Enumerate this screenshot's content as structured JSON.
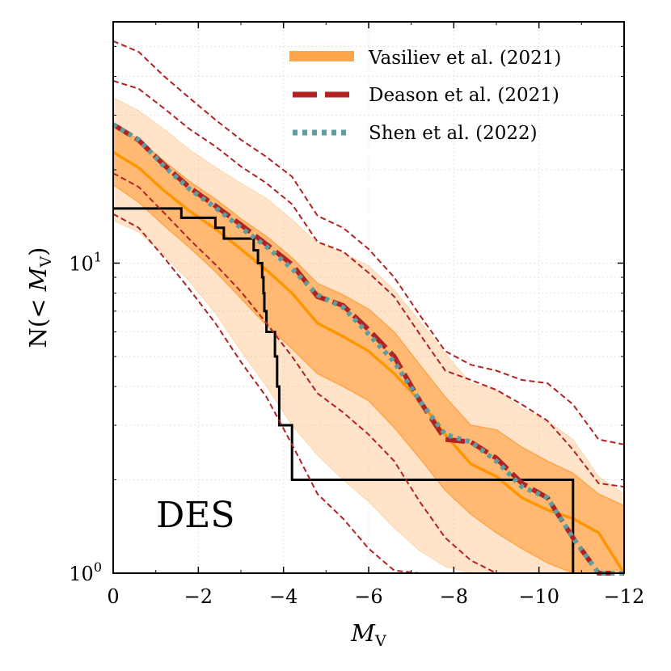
{
  "chart_data": {
    "type": "line",
    "panel_label": "DES",
    "xlabel": {
      "main": "M",
      "sub": "V"
    },
    "ylabel": {
      "prefix": "N(< ",
      "main": "M",
      "sub": "V",
      "suffix": ")"
    },
    "xlim": [
      0,
      -12
    ],
    "ylim": [
      1,
      60
    ],
    "y_scale": "log",
    "grid": true,
    "legend_position": "top-right",
    "x_ticks": [
      {
        "value": 0,
        "label": "0"
      },
      {
        "value": -2,
        "label": "−2"
      },
      {
        "value": -4,
        "label": "−4"
      },
      {
        "value": -6,
        "label": "−6"
      },
      {
        "value": -8,
        "label": "−8"
      },
      {
        "value": -10,
        "label": "−10"
      },
      {
        "value": -12,
        "label": "−12"
      }
    ],
    "y_ticks": [
      {
        "value": 1,
        "base": "10",
        "exp": "0"
      },
      {
        "value": 10,
        "base": "10",
        "exp": "1"
      }
    ],
    "x": [
      0,
      -0.6,
      -1.2,
      -1.8,
      -2.4,
      -3.0,
      -3.6,
      -4.2,
      -4.8,
      -5.4,
      -6.0,
      -6.6,
      -7.2,
      -7.8,
      -8.4,
      -9.0,
      -9.6,
      -10.2,
      -10.8,
      -11.4,
      -12.0
    ],
    "vasiliev": {
      "name": "Vasiliev et al. (2021)",
      "color": "#ffa64d",
      "line_color": "#ff9500",
      "median": [
        22.8,
        20.3,
        17.1,
        14.7,
        12.9,
        11.1,
        9.5,
        8.0,
        6.4,
        5.8,
        5.2,
        4.4,
        3.6,
        2.8,
        2.25,
        2.05,
        1.75,
        1.6,
        1.5,
        1.35,
        1.0
      ],
      "inner_lo": [
        17.9,
        15.7,
        13.2,
        11.2,
        9.4,
        7.7,
        6.3,
        5.3,
        4.4,
        4.0,
        3.6,
        2.95,
        2.35,
        1.85,
        1.55,
        1.35,
        1.2,
        1.08,
        1.0,
        1.0,
        1.0
      ],
      "inner_hi": [
        28.0,
        25.0,
        21.3,
        18.3,
        16.1,
        13.9,
        12.2,
        10.4,
        8.6,
        7.9,
        7.1,
        6.0,
        4.7,
        3.7,
        3.0,
        2.9,
        2.55,
        2.3,
        2.1,
        1.8,
        1.65
      ],
      "outer_lo": [
        13.7,
        12.6,
        10.6,
        8.7,
        6.9,
        5.2,
        4.0,
        3.0,
        2.4,
        2.0,
        1.7,
        1.4,
        1.18,
        1.05,
        1.0,
        1.0,
        1.0,
        1.0,
        1.0,
        1.0,
        1.0
      ],
      "outer_hi": [
        34.2,
        31.0,
        27.0,
        23.2,
        20.4,
        18.1,
        16.2,
        13.8,
        11.6,
        10.8,
        9.8,
        8.2,
        6.5,
        5.1,
        4.1,
        3.9,
        3.4,
        3.1,
        2.7,
        2.05,
        1.8
      ]
    },
    "deason": {
      "name": "Deason et al. (2021)",
      "color": "#b22222",
      "median": [
        28.0,
        24.9,
        20.7,
        17.5,
        15.3,
        13.3,
        11.5,
        9.9,
        7.8,
        7.3,
        6.1,
        5.0,
        3.6,
        2.7,
        2.65,
        2.35,
        1.95,
        1.75,
        1.3,
        1.0,
        1.0
      ],
      "inner_lo": [
        19.5,
        17.6,
        14.5,
        11.9,
        9.9,
        8.1,
        6.4,
        5.0,
        3.8,
        3.3,
        2.8,
        2.3,
        1.7,
        1.3,
        1.1,
        1.0,
        1.0,
        1.0,
        1.0,
        1.0,
        1.0
      ],
      "inner_hi": [
        38.7,
        36.5,
        31.5,
        27.0,
        23.8,
        20.5,
        18.1,
        15.5,
        11.7,
        10.9,
        9.3,
        7.8,
        5.9,
        4.5,
        4.2,
        3.9,
        3.5,
        3.1,
        2.5,
        1.95,
        1.9
      ],
      "outer_lo": [
        14.4,
        13.0,
        10.4,
        8.2,
        6.4,
        4.8,
        3.7,
        2.6,
        1.8,
        1.5,
        1.2,
        1.02,
        1.0,
        1.0,
        1.0,
        1.0,
        1.0,
        1.0,
        1.0,
        1.0,
        1.0
      ],
      "outer_hi": [
        52.0,
        48.0,
        40.0,
        34.0,
        29.0,
        25.0,
        22.0,
        19.0,
        14.2,
        13.0,
        11.1,
        9.0,
        6.8,
        5.2,
        4.7,
        4.5,
        4.2,
        4.1,
        3.5,
        2.7,
        2.6
      ]
    },
    "shen": {
      "name": "Shen et al. (2022)",
      "color": "#5f9ea0",
      "median": [
        28.0,
        25.0,
        20.5,
        17.3,
        15.1,
        13.0,
        11.3,
        9.6,
        7.9,
        7.2,
        5.9,
        4.8,
        3.6,
        2.8,
        2.65,
        2.3,
        1.9,
        1.75,
        1.3,
        1.0,
        1.0
      ]
    },
    "des": {
      "name": "DES",
      "color": "#000000",
      "steps": [
        [
          0,
          15
        ],
        [
          -1.6,
          14
        ],
        [
          -2.4,
          13
        ],
        [
          -2.6,
          12
        ],
        [
          -3.3,
          11
        ],
        [
          -3.4,
          10
        ],
        [
          -3.5,
          9
        ],
        [
          -3.53,
          8
        ],
        [
          -3.55,
          7
        ],
        [
          -3.6,
          6
        ],
        [
          -3.8,
          5
        ],
        [
          -3.85,
          4
        ],
        [
          -3.9,
          3
        ],
        [
          -4.2,
          2
        ],
        [
          -10.8,
          1
        ]
      ]
    }
  }
}
